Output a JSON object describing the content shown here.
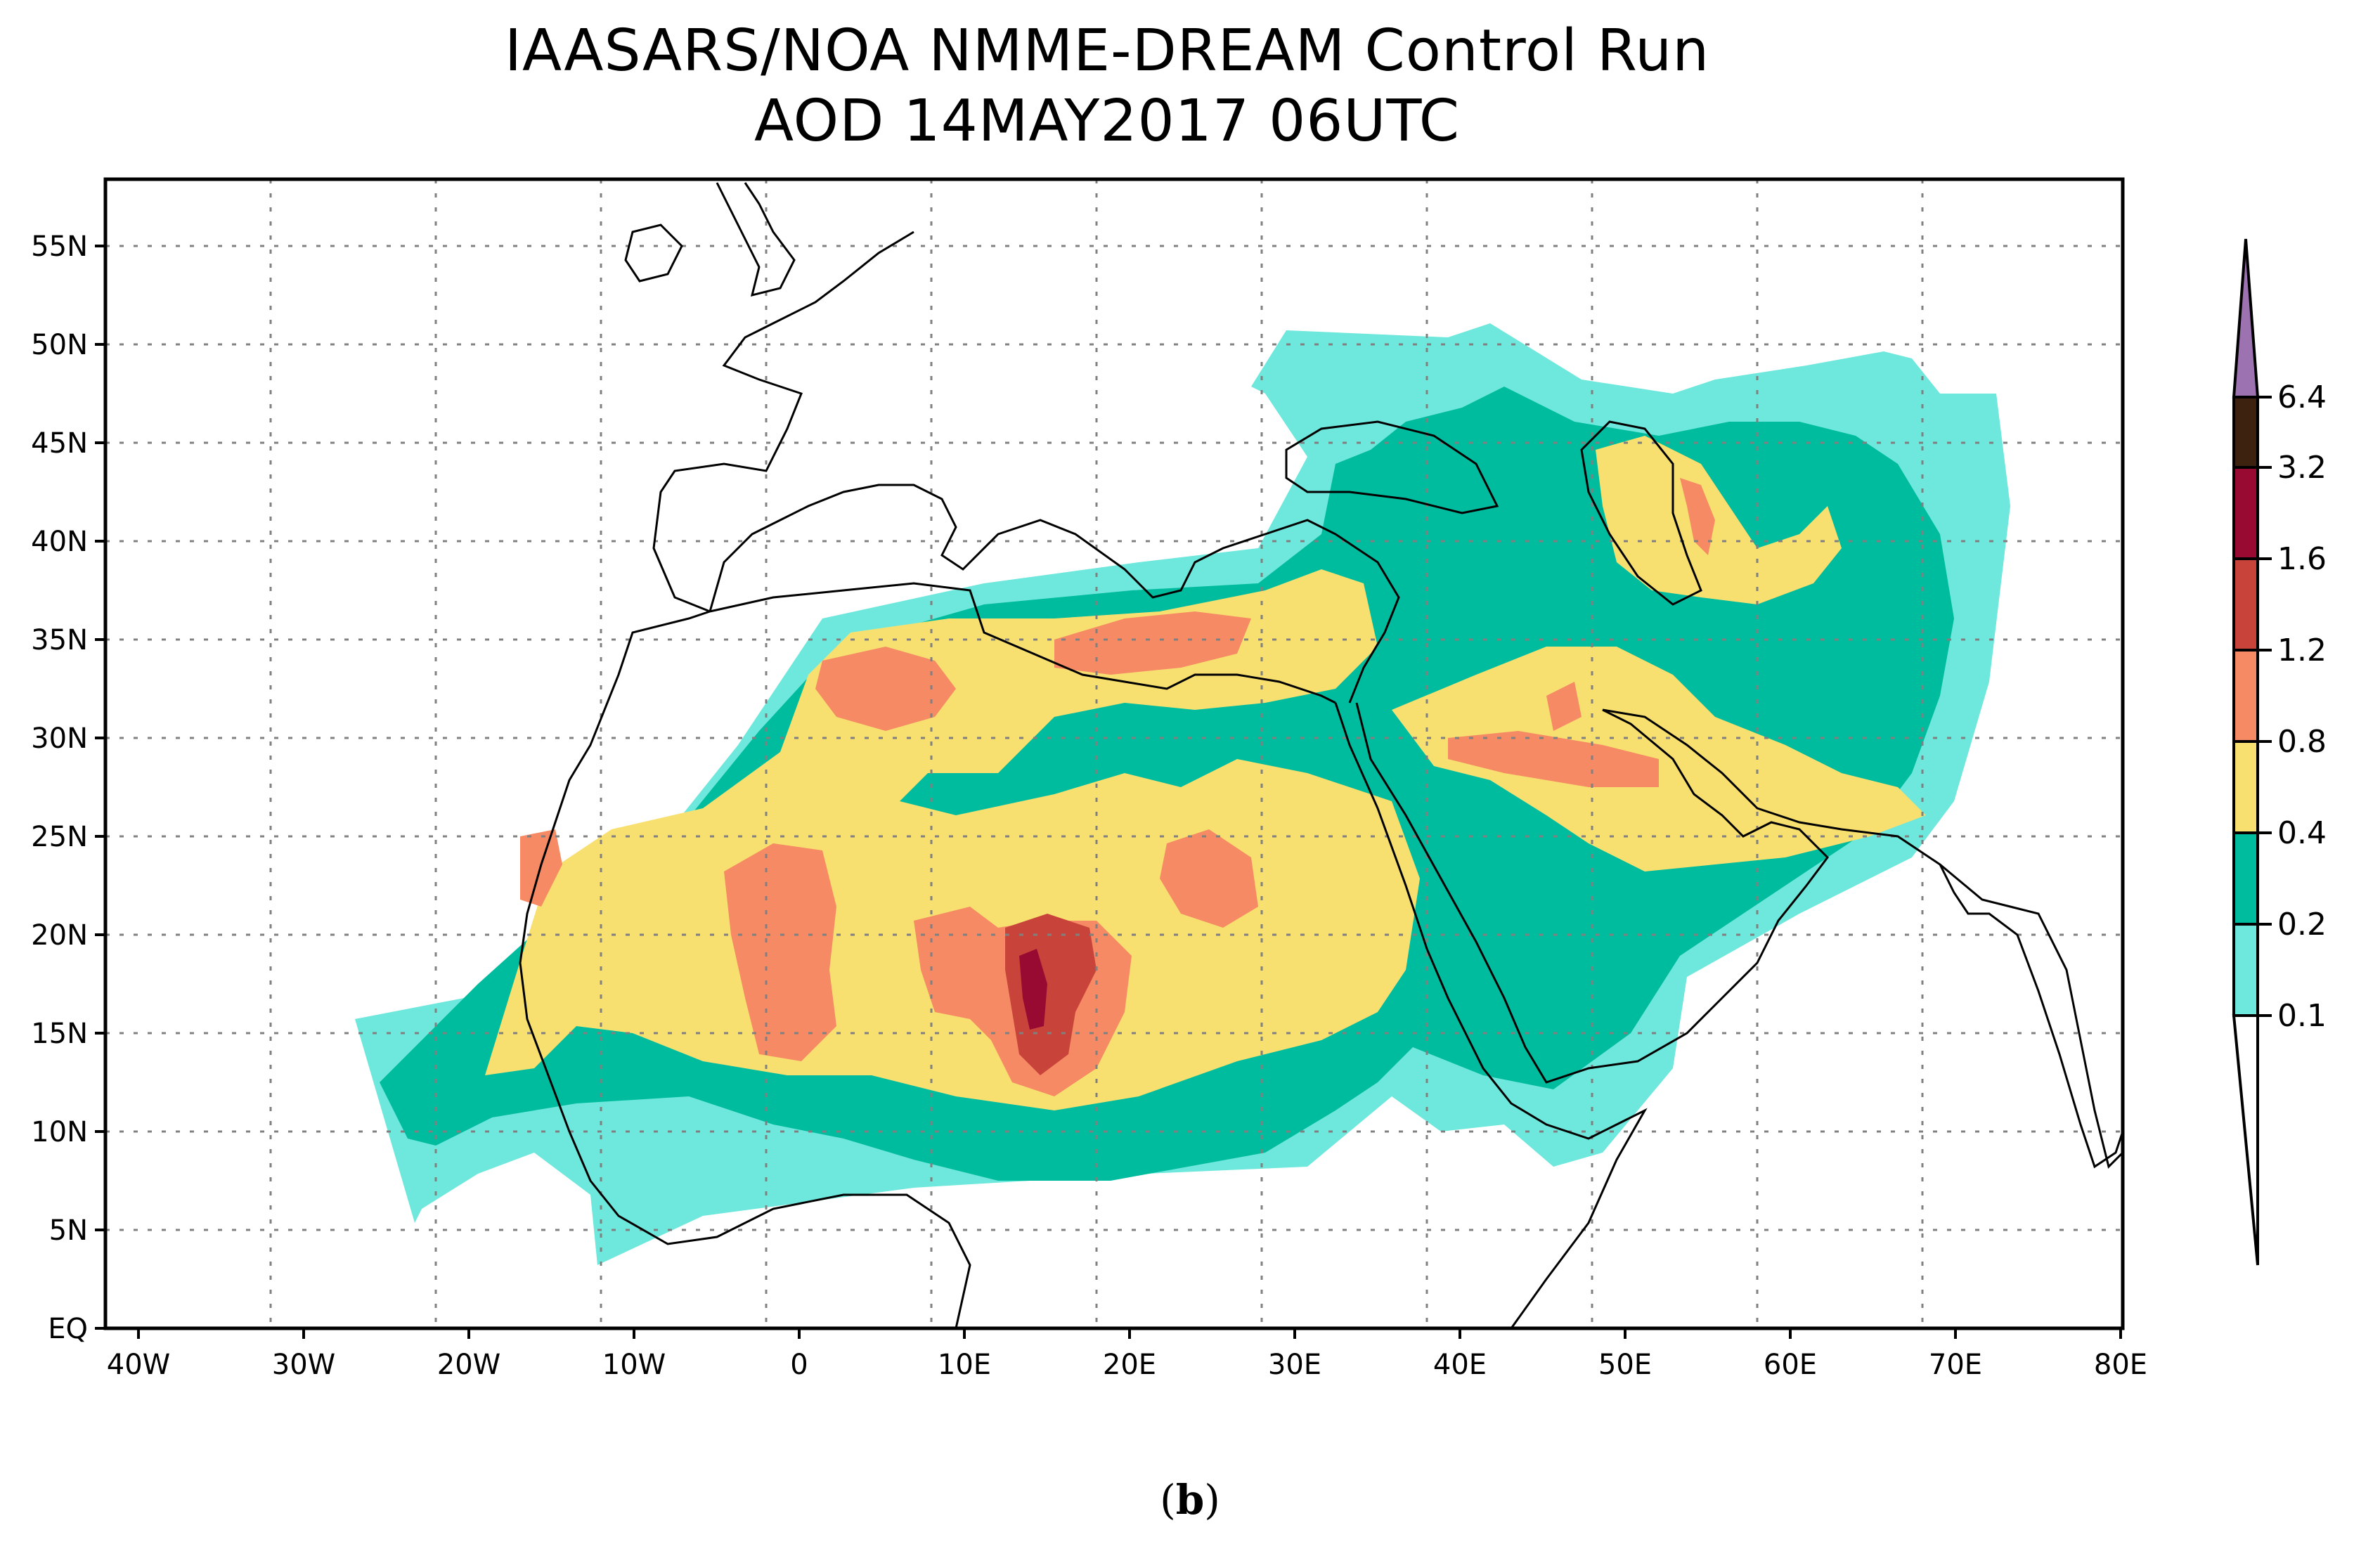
{
  "title": {
    "line1": "IAASARS/NOA NMME-DREAM Control Run",
    "line2": "AOD  14MAY2017 06UTC"
  },
  "caption": {
    "open": "(",
    "letter": "b",
    "close": ")"
  },
  "map": {
    "lon_range": [
      -42,
      80
    ],
    "lat_range": [
      0,
      58
    ],
    "grid": "dotted",
    "x_ticks": [
      "40W",
      "30W",
      "20W",
      "10W",
      "0",
      "10E",
      "20E",
      "30E",
      "40E",
      "50E",
      "60E",
      "70E",
      "80E"
    ],
    "y_ticks": [
      "EQ",
      "5N",
      "10N",
      "15N",
      "20N",
      "25N",
      "30N",
      "35N",
      "40N",
      "45N",
      "50N",
      "55N"
    ],
    "variable": "AOD"
  },
  "colorbar": {
    "levels": [
      "0.1",
      "0.2",
      "0.4",
      "0.8",
      "1.2",
      "1.6",
      "3.2",
      "6.4"
    ],
    "colors": [
      "#6EE8DC",
      "#00BC9E",
      "#F8E070",
      "#F68A64",
      "#C8443A",
      "#980A32",
      "#3E2210",
      "#9C72B0"
    ],
    "under_color": "#ffffff"
  }
}
